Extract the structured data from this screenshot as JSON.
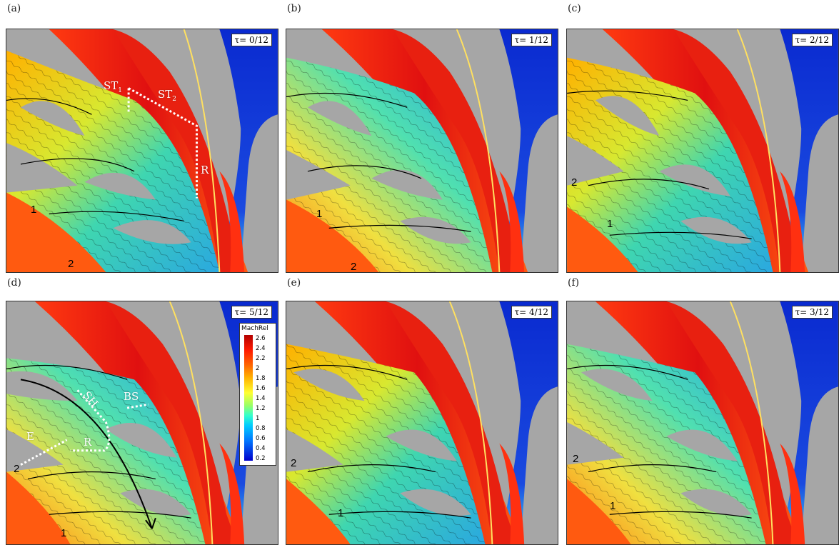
{
  "panels": [
    {
      "label": "(a)",
      "tau": "τ= 0/12"
    },
    {
      "label": "(b)",
      "tau": "τ= 1/12"
    },
    {
      "label": "(c)",
      "tau": "τ= 2/12"
    },
    {
      "label": "(d)",
      "tau": "τ= 5/12"
    },
    {
      "label": "(e)",
      "tau": "τ= 4/12"
    },
    {
      "label": "(f)",
      "tau": "τ= 3/12"
    }
  ],
  "annotations": {
    "a": {
      "st1": "ST",
      "st1_sub": "1",
      "st2": "ST",
      "st2_sub": "2",
      "r": "R",
      "n1": "1",
      "n2": "2"
    },
    "b": {
      "n1": "1",
      "n2": "2"
    },
    "c": {
      "n1": "1",
      "n2": "2"
    },
    "d": {
      "sh": "SH",
      "bs": "BS",
      "e": "E",
      "r": "R",
      "n1": "1",
      "n2": "2"
    },
    "e": {
      "n1": "1",
      "n2": "2"
    },
    "f": {
      "n1": "1",
      "n2": "2"
    }
  },
  "colorbar": {
    "title": "MachRel",
    "ticks": [
      "2.6",
      "2.4",
      "2.2",
      "2",
      "1.8",
      "1.6",
      "1.4",
      "1.2",
      "1",
      "0.8",
      "0.6",
      "0.4",
      "0.2"
    ]
  },
  "colors": {
    "solid_gray": "#a6a6a6",
    "high_mach": "#e8201a",
    "low_mach": "#1f3fd6",
    "mid_mach": "#3fd6c8"
  }
}
